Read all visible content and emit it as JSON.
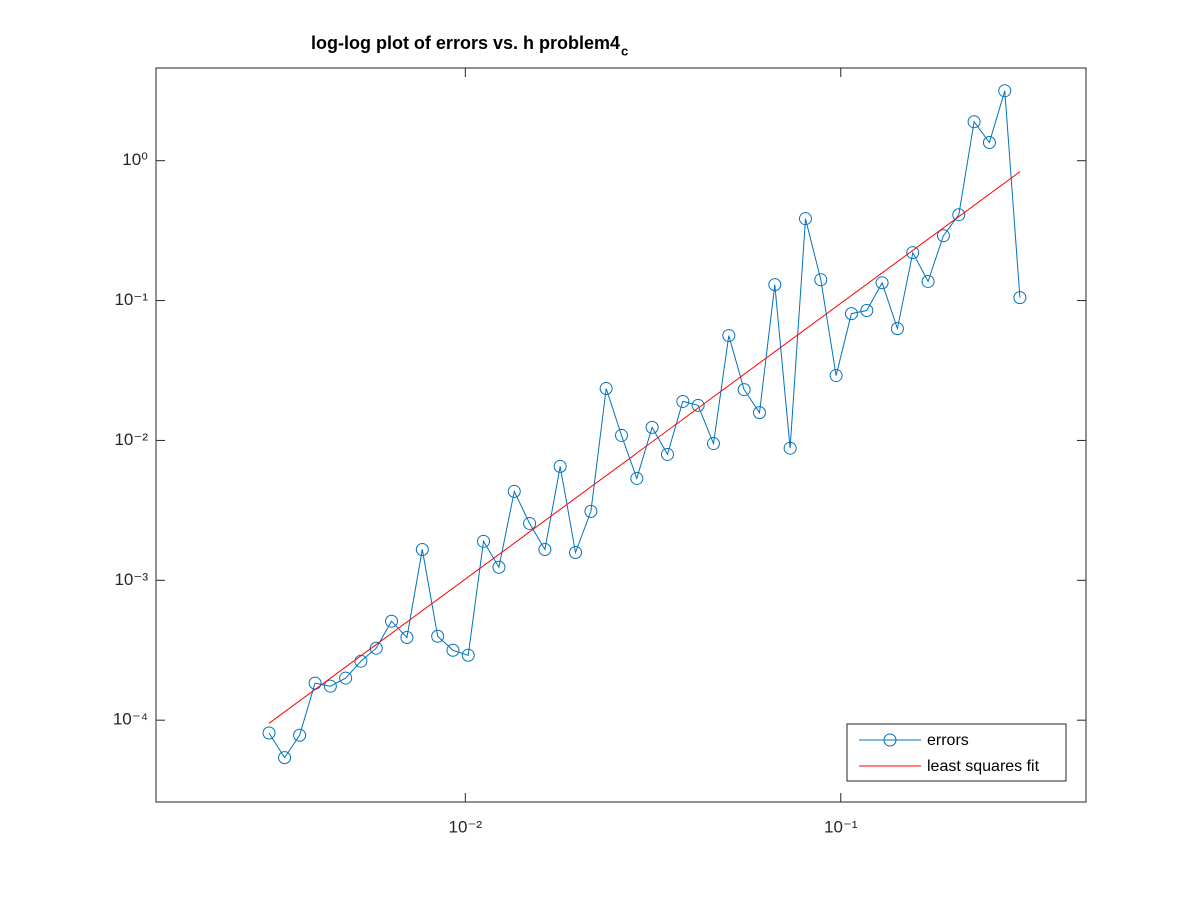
{
  "chart_data": {
    "type": "line",
    "title": "log-log plot of errors vs. h problem4",
    "title_subscript": "c",
    "xscale": "log",
    "yscale": "log",
    "grid": false,
    "legend": "southeast",
    "xlim": [
      0.0015,
      0.45
    ],
    "ylim": [
      2.6e-05,
      4.6
    ],
    "xticks": [
      {
        "value": 0.01,
        "label": "10⁻²"
      },
      {
        "value": 0.1,
        "label": "10⁻¹"
      }
    ],
    "yticks": [
      {
        "value": 0.0001,
        "label": "10⁻⁴"
      },
      {
        "value": 0.001,
        "label": "10⁻³"
      },
      {
        "value": 0.01,
        "label": "10⁻²"
      },
      {
        "value": 0.1,
        "label": "10⁻¹"
      },
      {
        "value": 1,
        "label": "10⁰"
      }
    ],
    "series": [
      {
        "name": "errors",
        "color": "#0072bd",
        "marker": "circle",
        "x": [
          0.003,
          0.0033,
          0.00362,
          0.00398,
          0.00437,
          0.0048,
          0.00527,
          0.00579,
          0.00636,
          0.00699,
          0.00768,
          0.00844,
          0.00927,
          0.01018,
          0.01118,
          0.01229,
          0.0135,
          0.01483,
          0.01629,
          0.01789,
          0.01966,
          0.0216,
          0.02372,
          0.02606,
          0.02863,
          0.03145,
          0.03455,
          0.03796,
          0.0417,
          0.04581,
          0.05033,
          0.05529,
          0.06074,
          0.06673,
          0.07331,
          0.08054,
          0.08847,
          0.09719,
          0.10677,
          0.1173,
          0.12886,
          0.14156,
          0.15552,
          0.17085,
          0.1877,
          0.2062,
          0.22653,
          0.24886,
          0.2734,
          0.3
        ],
        "values": [
          8.1e-05,
          5.4e-05,
          7.8e-05,
          0.000184,
          0.000175,
          0.0002,
          0.000264,
          0.000327,
          0.00051,
          0.00039,
          0.00166,
          0.000398,
          0.000316,
          0.000291,
          0.0019,
          0.00124,
          0.00432,
          0.00255,
          0.00166,
          0.00652,
          0.00158,
          0.00311,
          0.0235,
          0.01086,
          0.00535,
          0.0124,
          0.00794,
          0.019,
          0.0178,
          0.0095,
          0.0562,
          0.0231,
          0.0158,
          0.13,
          0.0088,
          0.385,
          0.141,
          0.0291,
          0.0807,
          0.0849,
          0.134,
          0.063,
          0.22,
          0.137,
          0.291,
          0.411,
          1.9,
          1.35,
          3.16,
          0.105
        ]
      },
      {
        "name": "least squares fit",
        "color": "#ff0000",
        "marker": "none",
        "x": [
          0.003,
          0.3
        ],
        "values": [
          9.5e-05,
          0.834
        ]
      }
    ]
  }
}
